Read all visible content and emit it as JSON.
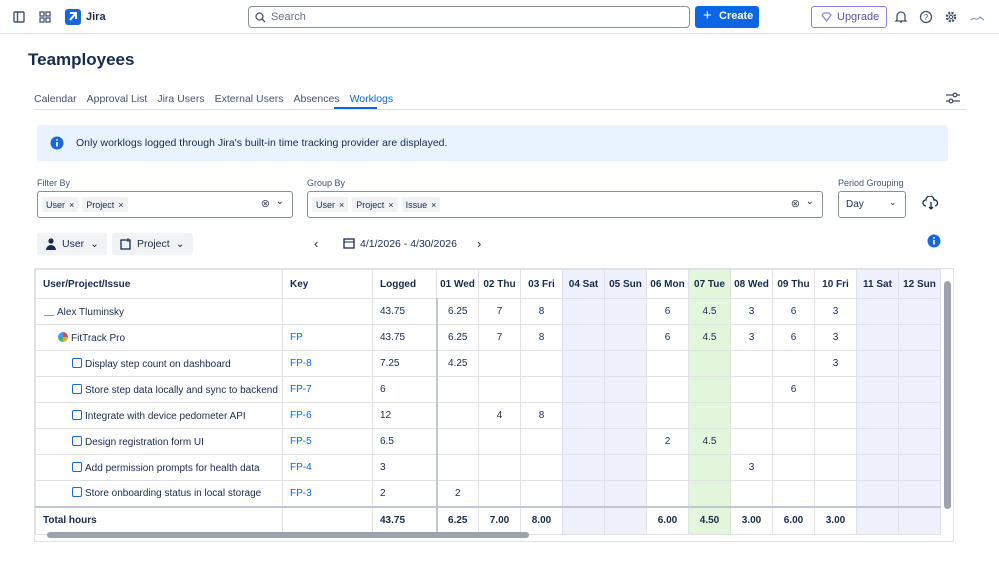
{
  "topbar": {
    "app": "Jira",
    "search_placeholder": "Search",
    "create": "Create",
    "upgrade": "Upgrade"
  },
  "page": {
    "title": "Teamployees",
    "tabs": [
      "Calendar",
      "Approval List",
      "Jira Users",
      "External Users",
      "Absences",
      "Worklogs"
    ]
  },
  "info": "Only worklogs logged through Jira's built-in time tracking provider are displayed.",
  "filters": {
    "filter_by": {
      "label": "Filter By",
      "chips": [
        "User",
        "Project"
      ]
    },
    "group_by": {
      "label": "Group By",
      "chips": [
        "User",
        "Project",
        "Issue"
      ]
    },
    "period_grouping": {
      "label": "Period Grouping",
      "value": "Day"
    }
  },
  "toolbar": {
    "user": "User",
    "project": "Project",
    "date_range": "4/1/2026 - 4/30/2026"
  },
  "table": {
    "columns": [
      "User/Project/Issue",
      "Key",
      "Logged",
      "01 Wed",
      "02 Thu",
      "03 Fri",
      "04 Sat",
      "05 Sun",
      "06 Mon",
      "07 Tue",
      "08 Wed",
      "09 Thu",
      "10 Fri",
      "11 Sat",
      "12 Sun"
    ],
    "rows": [
      [
        "Alex Tluminsky",
        null,
        "43.75",
        "6.25",
        "7",
        "8",
        null,
        null,
        "6",
        "4.5",
        "3",
        "6",
        "3",
        null,
        null
      ],
      [
        "FitTrack Pro",
        "FP",
        "43.75",
        "6.25",
        "7",
        "8",
        null,
        null,
        "6",
        "4.5",
        "3",
        "6",
        "3",
        null,
        null
      ],
      [
        "Display step count on dashboard",
        "FP-8",
        "7.25",
        "4.25",
        null,
        null,
        null,
        null,
        null,
        null,
        null,
        null,
        "3",
        null,
        null
      ],
      [
        "Store step data locally and sync to backend",
        "FP-7",
        "6",
        null,
        null,
        null,
        null,
        null,
        null,
        null,
        null,
        "6",
        null,
        null,
        null
      ],
      [
        "Integrate with device pedometer API",
        "FP-6",
        "12",
        null,
        "4",
        "8",
        null,
        null,
        null,
        null,
        null,
        null,
        null,
        null,
        null
      ],
      [
        "Design registration form UI",
        "FP-5",
        "6.5",
        null,
        null,
        null,
        null,
        null,
        "2",
        "4.5",
        null,
        null,
        null,
        null,
        null
      ],
      [
        "Add permission prompts for health data",
        "FP-4",
        "3",
        null,
        null,
        null,
        null,
        null,
        null,
        null,
        "3",
        null,
        null,
        null,
        null
      ],
      [
        "Store onboarding status in local storage",
        "FP-3",
        "2",
        "2",
        null,
        null,
        null,
        null,
        null,
        null,
        null,
        null,
        null,
        null,
        null
      ]
    ],
    "total": [
      "Total hours",
      null,
      "43.75",
      "6.25",
      "7.00",
      "8.00",
      null,
      null,
      "6.00",
      "4.50",
      "3.00",
      "6.00",
      "3.00",
      null,
      null
    ]
  }
}
